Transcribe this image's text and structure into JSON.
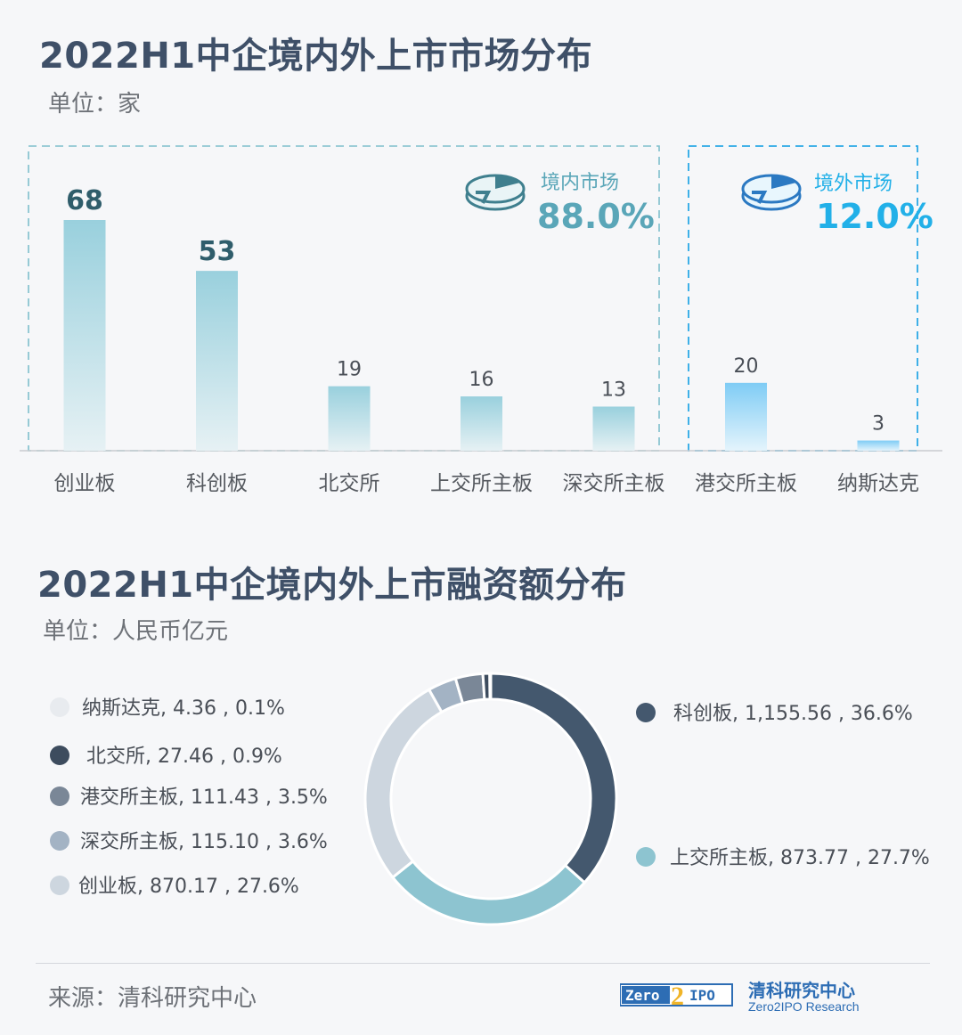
{
  "colors": {
    "domestic_accent": "#5aa6b8",
    "overseas_accent": "#22b0e8",
    "title": "#3f5068"
  },
  "section1": {
    "title": "2022H1中企境内外上市市场分布",
    "unit": "单位：家"
  },
  "section2": {
    "title": "2022H1中企境内外上市融资额分布",
    "unit": "单位：人民币亿元"
  },
  "footer": {
    "source": "来源：清科研究中心",
    "logo_name": "清科研究中心",
    "logo_sub": "Zero2IPO Research",
    "logo_mark": "Zero2IPO"
  },
  "chart_data": [
    {
      "type": "bar",
      "categories": [
        "创业板",
        "科创板",
        "北交所",
        "上交所主板",
        "深交所主板",
        "港交所主板",
        "纳斯达克"
      ],
      "values": [
        68,
        53,
        19,
        16,
        13,
        20,
        3
      ],
      "ylim": [
        0,
        68
      ],
      "groups": [
        {
          "label": "境内市场",
          "share": "88.0%",
          "categories": [
            "创业板",
            "科创板",
            "北交所",
            "上交所主板",
            "深交所主板"
          ]
        },
        {
          "label": "境外市场",
          "share": "12.0%",
          "categories": [
            "港交所主板",
            "纳斯达克"
          ]
        }
      ]
    },
    {
      "type": "pie",
      "slices": [
        {
          "label": "科创板",
          "value": 1155.56,
          "display_value": "1,155.56",
          "percent": "36.6%",
          "color": "#44586e"
        },
        {
          "label": "上交所主板",
          "value": 873.77,
          "display_value": "873.77",
          "percent": "27.7%",
          "color": "#8dc4d0"
        },
        {
          "label": "创业板",
          "value": 870.17,
          "display_value": "870.17",
          "percent": "27.6%",
          "color": "#cdd6df"
        },
        {
          "label": "深交所主板",
          "value": 115.1,
          "display_value": "115.10",
          "percent": "3.6%",
          "color": "#a3b3c4"
        },
        {
          "label": "港交所主板",
          "value": 111.43,
          "display_value": "111.43",
          "percent": "3.5%",
          "color": "#7a8797"
        },
        {
          "label": "北交所",
          "value": 27.46,
          "display_value": "27.46",
          "percent": "0.9%",
          "color": "#3d4c5e"
        },
        {
          "label": "纳斯达克",
          "value": 4.36,
          "display_value": "4.36",
          "percent": "0.1%",
          "color": "#e8ebef"
        }
      ]
    }
  ]
}
